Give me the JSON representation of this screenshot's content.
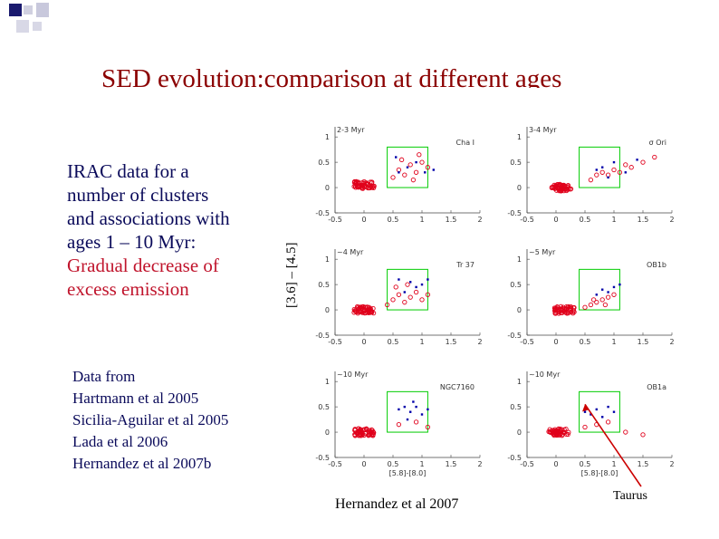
{
  "slide": {
    "title": "SED evolution:comparison at different ages",
    "description": {
      "line1": "IRAC data for a",
      "line2": "number of clusters",
      "line3": "and associations with",
      "line4": "ages 1 – 10 Myr:",
      "line5": "Gradual decrease of",
      "line6": "excess emission"
    },
    "references": {
      "heading": "Data from",
      "items": [
        "Hartmann et al 2005",
        "Sicilia-Aguilar et al 2005",
        "Lada et al 2006",
        "Hernandez et al 2007b"
      ]
    },
    "credit": "Hernandez et al 2007",
    "annotation": "Taurus",
    "colors": {
      "title": "#8b0000",
      "text": "#0a0a5a",
      "accent": "#c0142c",
      "box": "#00cc00",
      "points_red": "#e0001b",
      "points_blue": "#0000aa",
      "arrow": "#cc0000"
    }
  },
  "chart_data": {
    "type": "scatter",
    "ylabel": "[3.6] – [4.5]",
    "xlabel": "[5.8]-[8.0]",
    "xlim": [
      -0.5,
      2
    ],
    "ylim": [
      -0.5,
      1.2
    ],
    "x_ticks": [
      "-0.5",
      "0",
      "0.5",
      "1",
      "1.5",
      "2"
    ],
    "y_ticks": [
      "-0.5",
      "0",
      "0.5",
      "1"
    ],
    "panels": [
      {
        "age": "2-3 Myr",
        "region": "Cha I",
        "red_center": [
          0.0,
          0.05
        ],
        "excess": [
          [
            0.5,
            0.2
          ],
          [
            0.6,
            0.35
          ],
          [
            0.7,
            0.25
          ],
          [
            0.8,
            0.45
          ],
          [
            0.9,
            0.3
          ],
          [
            1.0,
            0.5
          ],
          [
            1.1,
            0.4
          ],
          [
            0.65,
            0.55
          ],
          [
            0.85,
            0.15
          ],
          [
            0.95,
            0.65
          ]
        ],
        "blue": [
          [
            0.75,
            0.4
          ],
          [
            0.9,
            0.5
          ],
          [
            1.05,
            0.3
          ],
          [
            0.6,
            0.3
          ],
          [
            1.2,
            0.35
          ],
          [
            0.55,
            0.6
          ]
        ]
      },
      {
        "age": "3-4 Myr",
        "region": "σ Ori",
        "red_center": [
          0.1,
          0.0
        ],
        "excess": [
          [
            0.6,
            0.15
          ],
          [
            0.7,
            0.25
          ],
          [
            0.8,
            0.3
          ],
          [
            0.9,
            0.25
          ],
          [
            1.0,
            0.35
          ],
          [
            1.1,
            0.3
          ],
          [
            1.2,
            0.45
          ],
          [
            1.3,
            0.4
          ],
          [
            1.5,
            0.5
          ],
          [
            1.7,
            0.6
          ]
        ],
        "blue": [
          [
            0.8,
            0.4
          ],
          [
            1.0,
            0.5
          ],
          [
            1.2,
            0.3
          ],
          [
            0.9,
            0.2
          ],
          [
            1.4,
            0.55
          ],
          [
            0.7,
            0.35
          ]
        ]
      },
      {
        "age": "~4 Myr",
        "region": "Tr 37",
        "red_center": [
          0.0,
          0.0
        ],
        "excess": [
          [
            0.4,
            0.1
          ],
          [
            0.5,
            0.2
          ],
          [
            0.6,
            0.3
          ],
          [
            0.7,
            0.15
          ],
          [
            0.8,
            0.25
          ],
          [
            0.9,
            0.35
          ],
          [
            1.0,
            0.2
          ],
          [
            1.1,
            0.3
          ],
          [
            0.55,
            0.45
          ],
          [
            0.75,
            0.5
          ]
        ],
        "blue": [
          [
            0.6,
            0.6
          ],
          [
            0.8,
            0.55
          ],
          [
            0.9,
            0.45
          ],
          [
            1.0,
            0.5
          ],
          [
            0.7,
            0.35
          ],
          [
            1.1,
            0.6
          ]
        ]
      },
      {
        "age": "~5 Myr",
        "region": "OB1b",
        "red_center": [
          0.15,
          0.0
        ],
        "excess": [
          [
            0.5,
            0.05
          ],
          [
            0.6,
            0.1
          ],
          [
            0.7,
            0.15
          ],
          [
            0.8,
            0.2
          ],
          [
            0.9,
            0.25
          ],
          [
            1.0,
            0.3
          ],
          [
            0.65,
            0.2
          ],
          [
            0.85,
            0.1
          ]
        ],
        "blue": [
          [
            0.7,
            0.3
          ],
          [
            0.9,
            0.35
          ],
          [
            1.0,
            0.45
          ],
          [
            0.8,
            0.4
          ],
          [
            1.1,
            0.5
          ]
        ]
      },
      {
        "age": "~10 Myr",
        "region": "NGC7160",
        "red_center": [
          0.0,
          0.0
        ],
        "excess": [
          [
            0.6,
            0.15
          ],
          [
            0.9,
            0.2
          ],
          [
            1.1,
            0.1
          ]
        ],
        "blue": [
          [
            0.6,
            0.45
          ],
          [
            0.7,
            0.5
          ],
          [
            0.8,
            0.4
          ],
          [
            0.9,
            0.5
          ],
          [
            1.0,
            0.35
          ],
          [
            0.75,
            0.25
          ],
          [
            1.1,
            0.45
          ],
          [
            0.85,
            0.6
          ]
        ]
      },
      {
        "age": "~10 Myr",
        "region": "OB1a",
        "red_center": [
          0.05,
          0.0
        ],
        "excess": [
          [
            0.5,
            0.1
          ],
          [
            0.7,
            0.15
          ],
          [
            0.9,
            0.2
          ],
          [
            1.2,
            0.0
          ],
          [
            1.5,
            -0.05
          ]
        ],
        "blue": [
          [
            0.5,
            0.4
          ],
          [
            0.6,
            0.35
          ],
          [
            0.7,
            0.45
          ],
          [
            0.8,
            0.3
          ],
          [
            0.9,
            0.5
          ],
          [
            1.0,
            0.4
          ]
        ]
      }
    ]
  }
}
